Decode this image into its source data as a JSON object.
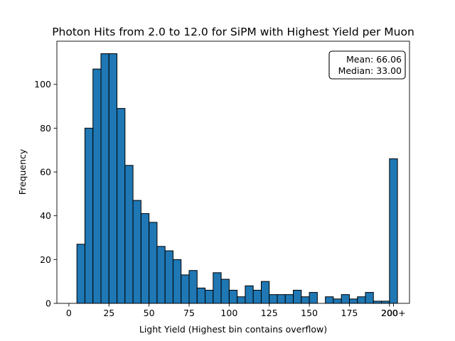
{
  "chart_data": {
    "type": "bar",
    "title": "Photon Hits from 2.0 to 12.0 for SiPM with Highest Yield per Muon",
    "xlabel": "Light Yield (Highest bin contains overflow)",
    "ylabel": "Frequency",
    "bin_width": 5,
    "bins": [
      {
        "start": 5,
        "count": 27
      },
      {
        "start": 10,
        "count": 80
      },
      {
        "start": 15,
        "count": 107
      },
      {
        "start": 20,
        "count": 114
      },
      {
        "start": 25,
        "count": 114
      },
      {
        "start": 30,
        "count": 89
      },
      {
        "start": 35,
        "count": 63
      },
      {
        "start": 40,
        "count": 47
      },
      {
        "start": 45,
        "count": 41
      },
      {
        "start": 50,
        "count": 37
      },
      {
        "start": 55,
        "count": 26
      },
      {
        "start": 60,
        "count": 24
      },
      {
        "start": 65,
        "count": 20
      },
      {
        "start": 70,
        "count": 13
      },
      {
        "start": 75,
        "count": 15
      },
      {
        "start": 80,
        "count": 7
      },
      {
        "start": 85,
        "count": 6
      },
      {
        "start": 90,
        "count": 14
      },
      {
        "start": 95,
        "count": 11
      },
      {
        "start": 100,
        "count": 6
      },
      {
        "start": 105,
        "count": 3
      },
      {
        "start": 110,
        "count": 8
      },
      {
        "start": 115,
        "count": 6
      },
      {
        "start": 120,
        "count": 10
      },
      {
        "start": 125,
        "count": 4
      },
      {
        "start": 130,
        "count": 4
      },
      {
        "start": 135,
        "count": 4
      },
      {
        "start": 140,
        "count": 6
      },
      {
        "start": 145,
        "count": 3
      },
      {
        "start": 150,
        "count": 5
      },
      {
        "start": 155,
        "count": 0
      },
      {
        "start": 160,
        "count": 3
      },
      {
        "start": 165,
        "count": 2
      },
      {
        "start": 170,
        "count": 4
      },
      {
        "start": 175,
        "count": 2
      },
      {
        "start": 180,
        "count": 3
      },
      {
        "start": 185,
        "count": 5
      },
      {
        "start": 190,
        "count": 1
      },
      {
        "start": 195,
        "count": 1
      },
      {
        "start": 200,
        "count": 66
      }
    ],
    "xlim": [
      -7.5,
      212.5
    ],
    "ylim": [
      0,
      119.7
    ],
    "xticks": [
      {
        "value": 0,
        "label": "0"
      },
      {
        "value": 25,
        "label": "25"
      },
      {
        "value": 50,
        "label": "50"
      },
      {
        "value": 75,
        "label": "75"
      },
      {
        "value": 100,
        "label": "100"
      },
      {
        "value": 125,
        "label": "125"
      },
      {
        "value": 150,
        "label": "150"
      },
      {
        "value": 175,
        "label": "175"
      },
      {
        "value": 200,
        "label": "200"
      },
      {
        "value": 202.5,
        "label": "200+"
      }
    ],
    "yticks": [
      {
        "value": 0,
        "label": "0"
      },
      {
        "value": 20,
        "label": "20"
      },
      {
        "value": 40,
        "label": "40"
      },
      {
        "value": 60,
        "label": "60"
      },
      {
        "value": 80,
        "label": "80"
      },
      {
        "value": 100,
        "label": "100"
      }
    ],
    "bar_color": "#1f77b4",
    "edge_color": "#000000",
    "grid": false,
    "stats_box": {
      "mean_label": "Mean: 66.06",
      "median_label": "Median: 33.00",
      "placement": "top-right"
    }
  }
}
